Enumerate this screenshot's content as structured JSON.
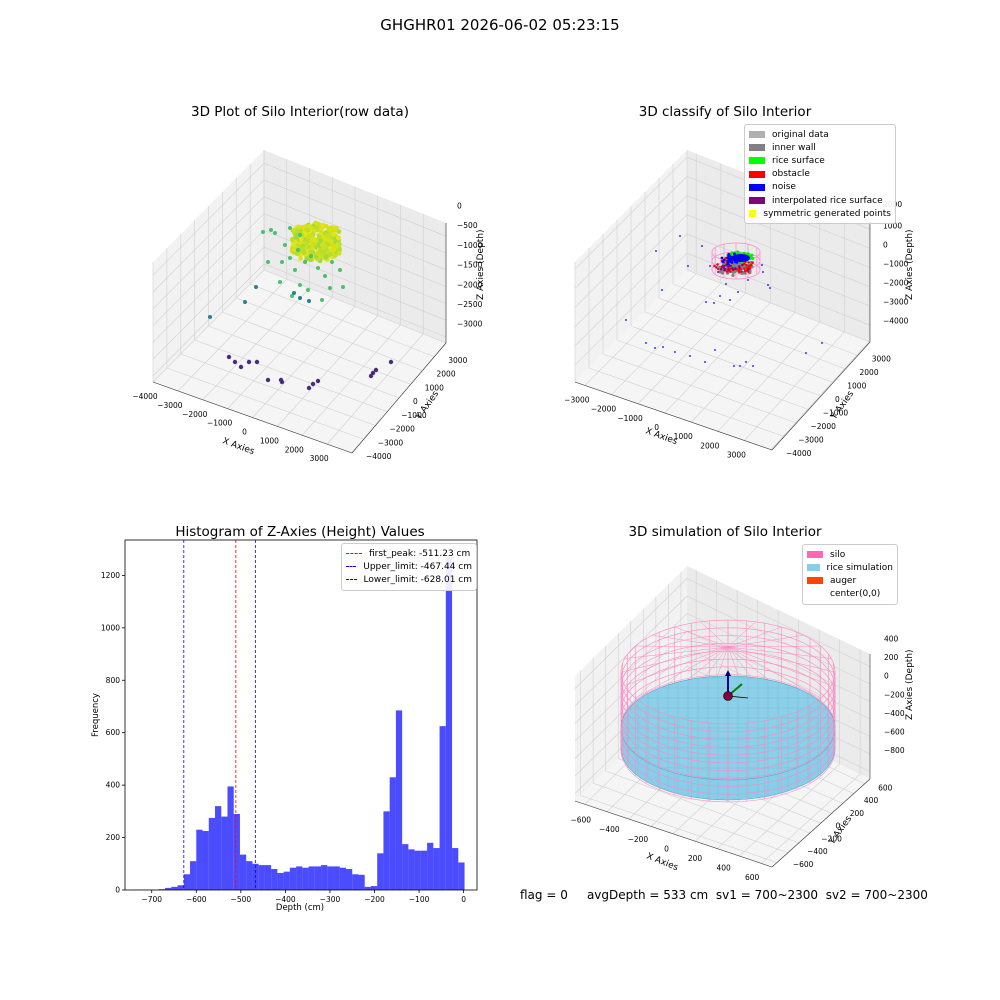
{
  "suptitle": "GHGHR01 2026-06-02 05:23:15",
  "footer": {
    "flag": "flag = 0",
    "avg": "avgDepth = 533 cm",
    "sv1": "sv1 = 700~2300",
    "sv2": "sv2 = 700~2300"
  },
  "chart_data": [
    {
      "type": "scatter",
      "title": "3D Plot of Silo Interior(row data)",
      "xlabel": "X Axies",
      "ylabel": "Y Axies",
      "zlabel": "Z Axies (Depth)",
      "x_ticks": [
        "−4000",
        "−3000",
        "−2000",
        "−1000",
        "0",
        "1000",
        "2000",
        "3000"
      ],
      "y_ticks": [
        "−4000",
        "−3000",
        "−2000",
        "−1000",
        "0",
        "1000",
        "2000",
        "3000"
      ],
      "z_ticks": [
        "0",
        "−500",
        "−1000",
        "−1500",
        "−2000",
        "−2500",
        "−3000"
      ]
    },
    {
      "type": "scatter",
      "title": "3D classify of Silo Interior",
      "xlabel": "X Axies",
      "ylabel": "Y Axies",
      "zlabel": "Z Axies (Depth)",
      "x_ticks": [
        "−3000",
        "−2000",
        "−1000",
        "0",
        "1000",
        "2000",
        "3000"
      ],
      "y_ticks": [
        "−4000",
        "−3000",
        "−2000",
        "−1000",
        "0",
        "1000",
        "2000",
        "3000"
      ],
      "z_ticks": [
        "1000",
        "0",
        "−1000",
        "−2000",
        "−3000",
        "−4000"
      ],
      "z_top_tick": "2000",
      "legend": [
        {
          "label": "original data",
          "color": "#b0b0b0"
        },
        {
          "label": "inner wall",
          "color": "#808080"
        },
        {
          "label": "rice surface",
          "color": "#00ff00"
        },
        {
          "label": "obstacle",
          "color": "#ff0000"
        },
        {
          "label": "noise",
          "color": "#0000ff"
        },
        {
          "label": "interpolated rice surface",
          "color": "#800080"
        },
        {
          "label": "symmetric generated points",
          "color": "#ffff00"
        }
      ]
    },
    {
      "type": "bar",
      "title": "Histogram of Z-Axies (Height) Values",
      "xlabel": "Depth (cm)",
      "ylabel": "Frequency",
      "xlim": [
        -760,
        30
      ],
      "ylim": [
        0,
        1335
      ],
      "x_ticks": [
        -700,
        -600,
        -500,
        -400,
        -300,
        -200,
        -100,
        0
      ],
      "y_ticks": [
        0,
        200,
        400,
        600,
        800,
        1000,
        1200
      ],
      "bin_start": -740,
      "bin_width": 14,
      "values": [
        1,
        1,
        1,
        1,
        3,
        8,
        12,
        18,
        60,
        110,
        230,
        225,
        275,
        320,
        280,
        395,
        290,
        135,
        110,
        100,
        95,
        95,
        80,
        65,
        70,
        85,
        90,
        85,
        90,
        90,
        95,
        90,
        90,
        85,
        80,
        60,
        58,
        12,
        15,
        140,
        300,
        430,
        685,
        175,
        155,
        150,
        150,
        180,
        160,
        625,
        1270,
        160,
        105
      ],
      "color": "#0000ff",
      "vlines": [
        {
          "label": "first_peak: -511.23 cm",
          "x": -511.23,
          "color": "#ff0000"
        },
        {
          "label": "Upper_limit: -467.44 cm",
          "x": -467.44,
          "color": "#0000ff"
        },
        {
          "label": "Lower_limit: -628.01 cm",
          "x": -628.01,
          "color": "#0000ff"
        }
      ]
    },
    {
      "type": "scatter",
      "title": "3D simulation of Silo Interior",
      "xlabel": "X Axies",
      "ylabel": "Y Axies",
      "zlabel": "Z Axies (Depth)",
      "x_ticks": [
        "−600",
        "−400",
        "−200",
        "0",
        "200",
        "400",
        "600"
      ],
      "y_ticks": [
        "−600",
        "−400",
        "−200",
        "0",
        "200",
        "400",
        "600"
      ],
      "z_ticks": [
        "400",
        "200",
        "0",
        "−200",
        "−400",
        "−600",
        "−800"
      ],
      "legend": [
        {
          "label": "silo",
          "color": "#ff69b4"
        },
        {
          "label": "rice simulation",
          "color": "#87ceeb"
        },
        {
          "label": "auger",
          "color": "#ff4500"
        },
        {
          "label": "center(0,0)",
          "color": ""
        }
      ]
    }
  ]
}
